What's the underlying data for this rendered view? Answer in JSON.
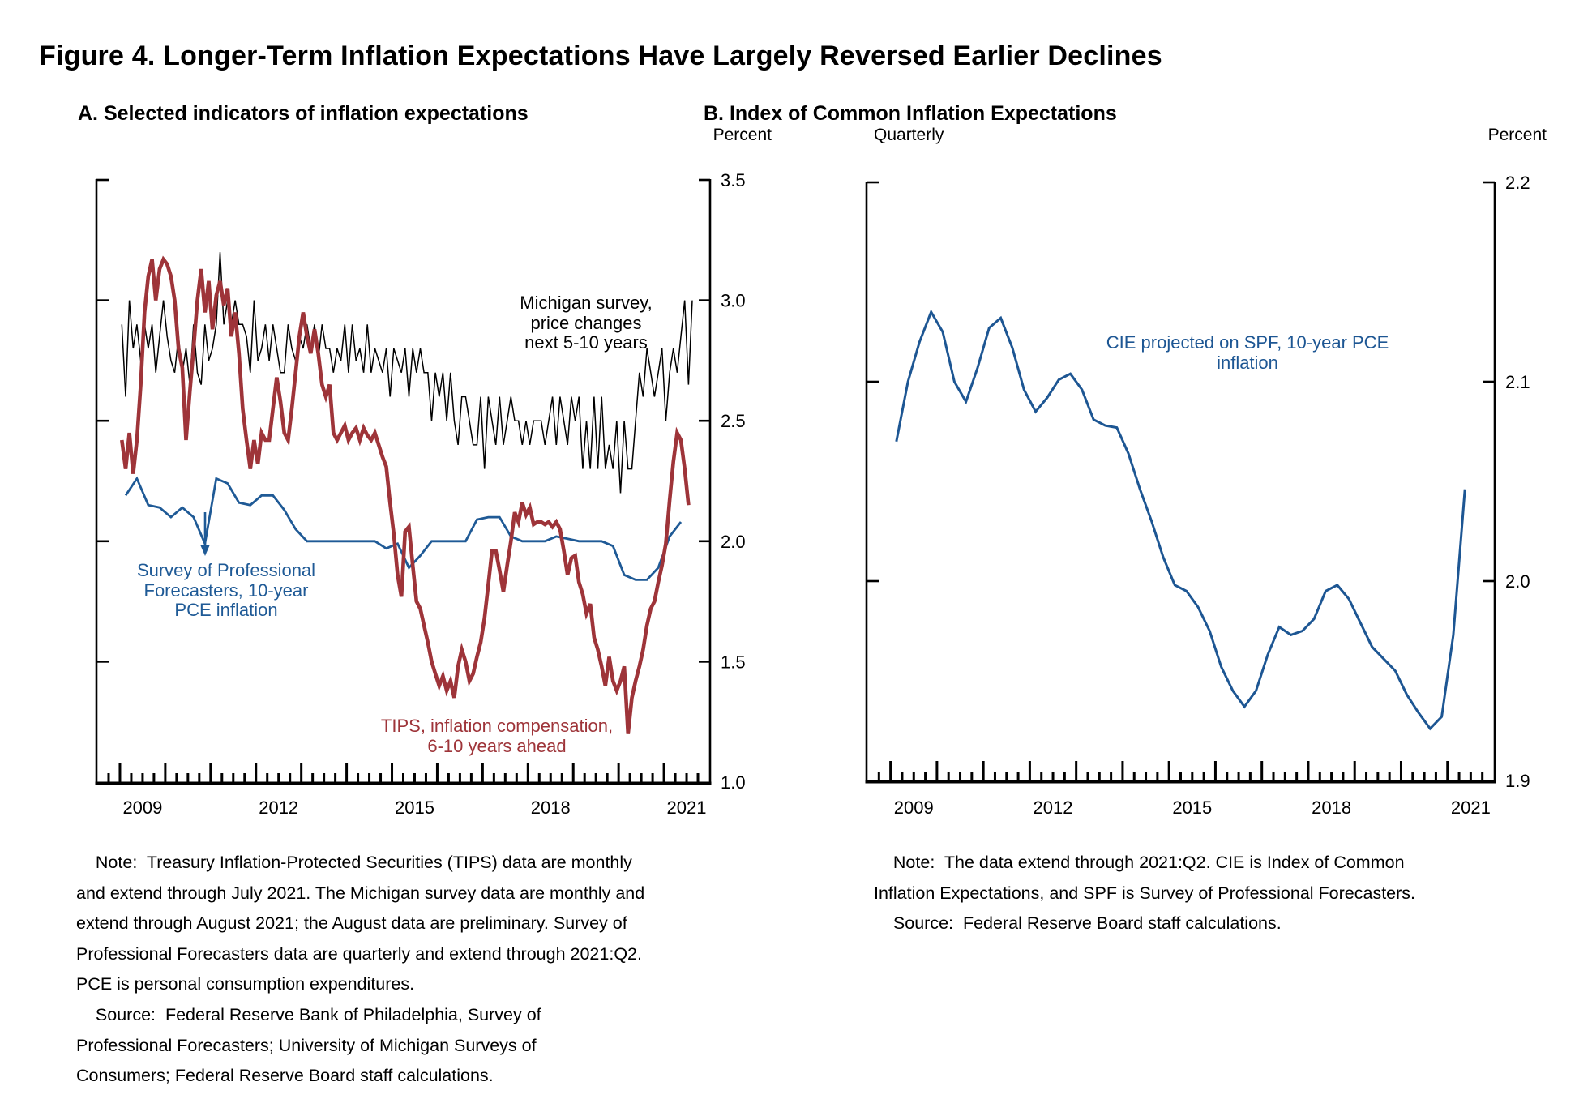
{
  "figure": {
    "title": "Figure 4. Longer-Term Inflation Expectations Have Largely Reversed Earlier Declines"
  },
  "panelA": {
    "title": "A. Selected indicators of inflation expectations",
    "unit_label": "Percent",
    "labels": {
      "michigan": "Michigan survey,\nprice changes\nnext 5-10 years",
      "spf": "Survey of Professional\nForecasters, 10-year\nPCE inflation",
      "tips": "TIPS, inflation compensation,\n6-10 years ahead"
    },
    "note": "    Note:  Treasury Inflation-Protected Securities (TIPS) data are monthly\nand extend through July 2021. The Michigan survey data are monthly and\nextend through August 2021; the August data are preliminary. Survey of\nProfessional Forecasters data are quarterly and extend through 2021:Q2.\nPCE is personal consumption expenditures.\n    Source:  Federal Reserve Bank of Philadelphia, Survey of\nProfessional Forecasters; University of Michigan Surveys of\nConsumers; Federal Reserve Board staff calculations."
  },
  "panelB": {
    "title": "B. Index of Common Inflation Expectations",
    "freq_label": "Quarterly",
    "unit_label": "Percent",
    "labels": {
      "cie": "CIE projected on SPF, 10-year PCE inflation"
    },
    "note": "    Note:  The data extend through 2021:Q2. CIE is Index of Common\nInflation Expectations, and SPF is Survey of Professional Forecasters.\n    Source:  Federal Reserve Board staff calculations."
  },
  "colors": {
    "michigan": "#000000",
    "spf": "#1F5A96",
    "tips": "#9E3439",
    "cie": "#1D5693"
  },
  "chart_data": [
    {
      "type": "line",
      "title": "A. Selected indicators of inflation expectations",
      "ylabel": "Percent",
      "ylim": [
        1.0,
        3.5
      ],
      "y_ticks": [
        3.5,
        3.0,
        2.5,
        2.0,
        1.5,
        1.0
      ],
      "x_year_labels": [
        2009,
        2012,
        2015,
        2018,
        2021
      ],
      "x_range_years": [
        2008.5,
        2022.0
      ],
      "grid": false,
      "legend_position": "in-chart text labels",
      "series": [
        {
          "name": "Michigan survey, price changes next 5-10 years",
          "color": "#000000",
          "freq": "monthly",
          "start": "2009-01",
          "values": [
            2.9,
            2.6,
            3.0,
            2.8,
            2.9,
            2.75,
            2.9,
            2.8,
            2.9,
            2.7,
            2.85,
            3.0,
            2.85,
            2.75,
            2.7,
            2.85,
            2.7,
            2.8,
            2.65,
            2.9,
            2.7,
            2.65,
            2.9,
            2.75,
            2.8,
            2.9,
            3.2,
            2.9,
            3.0,
            2.9,
            3.0,
            2.9,
            2.9,
            2.85,
            2.7,
            3.0,
            2.75,
            2.8,
            2.9,
            2.75,
            2.9,
            2.8,
            2.7,
            2.7,
            2.9,
            2.8,
            2.75,
            2.85,
            2.8,
            2.9,
            2.8,
            2.9,
            2.75,
            2.9,
            2.8,
            2.8,
            2.7,
            2.8,
            2.75,
            2.9,
            2.7,
            2.9,
            2.75,
            2.8,
            2.7,
            2.9,
            2.7,
            2.8,
            2.75,
            2.7,
            2.8,
            2.6,
            2.8,
            2.75,
            2.7,
            2.8,
            2.6,
            2.8,
            2.7,
            2.8,
            2.7,
            2.7,
            2.5,
            2.7,
            2.6,
            2.7,
            2.5,
            2.7,
            2.5,
            2.4,
            2.6,
            2.6,
            2.5,
            2.4,
            2.4,
            2.6,
            2.3,
            2.6,
            2.5,
            2.4,
            2.6,
            2.4,
            2.5,
            2.6,
            2.5,
            2.5,
            2.4,
            2.5,
            2.4,
            2.5,
            2.5,
            2.5,
            2.4,
            2.5,
            2.6,
            2.4,
            2.6,
            2.5,
            2.4,
            2.6,
            2.5,
            2.6,
            2.3,
            2.5,
            2.3,
            2.6,
            2.3,
            2.6,
            2.3,
            2.4,
            2.3,
            2.5,
            2.2,
            2.5,
            2.3,
            2.3,
            2.5,
            2.7,
            2.6,
            2.8,
            2.7,
            2.6,
            2.7,
            2.8,
            2.5,
            2.7,
            2.8,
            2.7,
            2.85,
            3.0,
            2.65,
            3.0
          ]
        },
        {
          "name": "Survey of Professional Forecasters, 10-year PCE inflation",
          "color": "#1F5A96",
          "freq": "quarterly",
          "start": "2009-Q1",
          "values": [
            2.19,
            2.26,
            2.15,
            2.14,
            2.1,
            2.14,
            2.1,
            1.99,
            2.26,
            2.24,
            2.16,
            2.15,
            2.19,
            2.19,
            2.13,
            2.05,
            2.0,
            2.0,
            2.0,
            2.0,
            2.0,
            2.0,
            2.0,
            1.97,
            1.99,
            1.89,
            1.94,
            2.0,
            2.0,
            2.0,
            2.0,
            2.09,
            2.1,
            2.1,
            2.02,
            2.0,
            2.0,
            2.0,
            2.02,
            2.01,
            2.0,
            2.0,
            2.0,
            1.98,
            1.86,
            1.84,
            1.84,
            1.89,
            2.02,
            2.08
          ]
        },
        {
          "name": "TIPS, inflation compensation, 6-10 years ahead",
          "color": "#9E3439",
          "freq": "monthly",
          "start": "2009-01",
          "values": [
            2.42,
            2.3,
            2.45,
            2.28,
            2.42,
            2.65,
            2.95,
            3.1,
            3.17,
            3.0,
            3.13,
            3.17,
            3.15,
            3.1,
            3.0,
            2.8,
            2.72,
            2.42,
            2.62,
            2.8,
            3.0,
            3.13,
            2.95,
            3.08,
            2.88,
            3.02,
            3.08,
            2.98,
            3.05,
            2.85,
            2.95,
            2.78,
            2.55,
            2.42,
            2.3,
            2.42,
            2.32,
            2.45,
            2.42,
            2.42,
            2.55,
            2.68,
            2.58,
            2.45,
            2.42,
            2.55,
            2.7,
            2.85,
            2.95,
            2.85,
            2.78,
            2.88,
            2.78,
            2.65,
            2.6,
            2.65,
            2.45,
            2.42,
            2.45,
            2.48,
            2.42,
            2.45,
            2.47,
            2.42,
            2.47,
            2.44,
            2.42,
            2.45,
            2.4,
            2.35,
            2.31,
            2.16,
            2.03,
            1.86,
            1.77,
            2.04,
            2.06,
            1.9,
            1.75,
            1.72,
            1.65,
            1.58,
            1.5,
            1.45,
            1.4,
            1.44,
            1.38,
            1.42,
            1.35,
            1.48,
            1.55,
            1.5,
            1.42,
            1.45,
            1.52,
            1.58,
            1.68,
            1.82,
            1.96,
            1.96,
            1.88,
            1.79,
            1.9,
            2.0,
            2.12,
            2.08,
            2.16,
            2.11,
            2.14,
            2.07,
            2.08,
            2.08,
            2.07,
            2.08,
            2.06,
            2.08,
            2.05,
            1.96,
            1.86,
            1.93,
            1.94,
            1.83,
            1.78,
            1.7,
            1.74,
            1.6,
            1.55,
            1.48,
            1.4,
            1.52,
            1.42,
            1.38,
            1.42,
            1.48,
            1.2,
            1.35,
            1.42,
            1.48,
            1.55,
            1.65,
            1.72,
            1.75,
            1.83,
            1.9,
            1.99,
            2.17,
            2.33,
            2.45,
            2.42,
            2.3,
            2.15
          ]
        }
      ]
    },
    {
      "type": "line",
      "title": "B. Index of Common Inflation Expectations",
      "ylabel": "Percent",
      "xlabel": "Quarterly",
      "ylim": [
        1.9,
        2.2
      ],
      "y_ticks": [
        2.2,
        2.1,
        2.0,
        1.9
      ],
      "x_year_labels": [
        2009,
        2012,
        2015,
        2018,
        2021
      ],
      "x_range_years": [
        2008.5,
        2022.0
      ],
      "grid": false,
      "legend_position": "in-chart text label",
      "series": [
        {
          "name": "CIE projected on SPF, 10-year PCE inflation",
          "color": "#1D5693",
          "freq": "quarterly",
          "start": "2009-Q1",
          "values": [
            2.07,
            2.1,
            2.12,
            2.135,
            2.125,
            2.1,
            2.09,
            2.107,
            2.127,
            2.132,
            2.117,
            2.096,
            2.085,
            2.092,
            2.101,
            2.104,
            2.096,
            2.081,
            2.078,
            2.077,
            2.064,
            2.046,
            2.03,
            2.012,
            1.998,
            1.995,
            1.987,
            1.975,
            1.957,
            1.945,
            1.937,
            1.945,
            1.963,
            1.977,
            1.973,
            1.975,
            1.981,
            1.995,
            1.998,
            1.991,
            1.979,
            1.967,
            1.961,
            1.955,
            1.943,
            1.934,
            1.926,
            1.932,
            1.973,
            2.046
          ]
        }
      ]
    }
  ]
}
